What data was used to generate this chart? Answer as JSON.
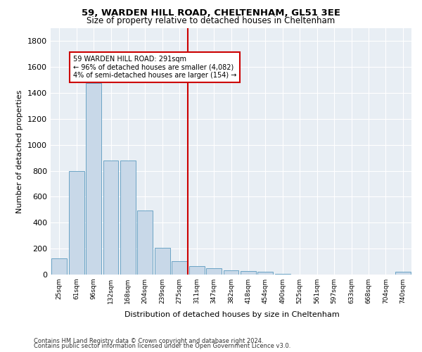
{
  "title1": "59, WARDEN HILL ROAD, CHELTENHAM, GL51 3EE",
  "title2": "Size of property relative to detached houses in Cheltenham",
  "xlabel": "Distribution of detached houses by size in Cheltenham",
  "ylabel": "Number of detached properties",
  "categories": [
    "25sqm",
    "61sqm",
    "96sqm",
    "132sqm",
    "168sqm",
    "204sqm",
    "239sqm",
    "275sqm",
    "311sqm",
    "347sqm",
    "382sqm",
    "418sqm",
    "454sqm",
    "490sqm",
    "525sqm",
    "561sqm",
    "597sqm",
    "633sqm",
    "668sqm",
    "704sqm",
    "740sqm"
  ],
  "values": [
    125,
    800,
    1475,
    882,
    882,
    495,
    205,
    105,
    65,
    50,
    35,
    28,
    20,
    5,
    0,
    0,
    0,
    0,
    0,
    0,
    20
  ],
  "bar_color": "#c8d8e8",
  "bar_edge_color": "#5a9abf",
  "vline_color": "#cc0000",
  "vline_pos": 7.5,
  "annotation_text": "59 WARDEN HILL ROAD: 291sqm\n← 96% of detached houses are smaller (4,082)\n4% of semi-detached houses are larger (154) →",
  "annotation_box_color": "#cc0000",
  "ylim": [
    0,
    1900
  ],
  "yticks": [
    0,
    200,
    400,
    600,
    800,
    1000,
    1200,
    1400,
    1600,
    1800
  ],
  "background_color": "#e8eef4",
  "footer1": "Contains HM Land Registry data © Crown copyright and database right 2024.",
  "footer2": "Contains public sector information licensed under the Open Government Licence v3.0."
}
